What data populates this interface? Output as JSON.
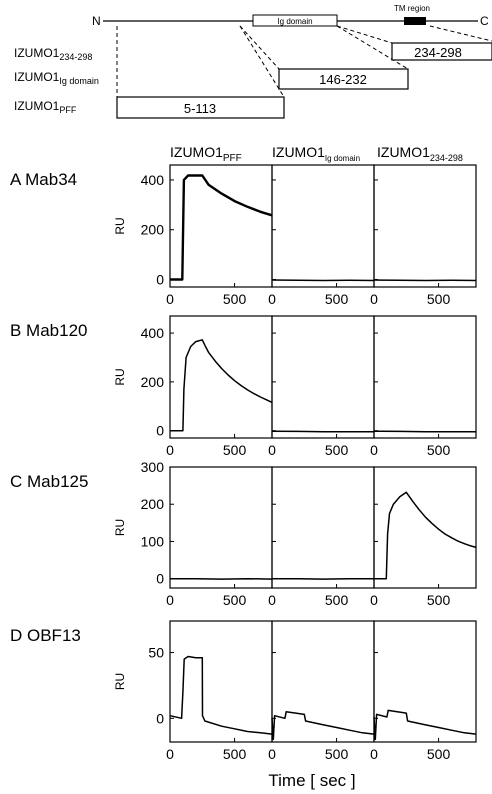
{
  "schematic": {
    "n_label": "N",
    "c_label": "C",
    "ig_domain_label": "Ig domain",
    "tm_region_label": "TM region",
    "constructs": [
      {
        "name_main": "IZUMO1",
        "name_sub": "234-298",
        "range": "234-298"
      },
      {
        "name_main": "IZUMO1",
        "name_sub": "Ig domain",
        "range": "146-232"
      },
      {
        "name_main": "IZUMO1",
        "name_sub": "PFF",
        "range": "5-113"
      }
    ]
  },
  "columns": [
    {
      "main": "IZUMO1",
      "sub": "PFF"
    },
    {
      "main": "IZUMO1",
      "sub": "Ig domain"
    },
    {
      "main": "IZUMO1",
      "sub": "234-298"
    }
  ],
  "x_axis_title": "Time [ sec ]",
  "y_axis_label": "RU",
  "chart_data": [
    {
      "type": "line",
      "panel_letter": "A",
      "antibody": "Mab34",
      "ylabel": "RU",
      "ylim": [
        -30,
        460
      ],
      "yticks": [
        0,
        200,
        400
      ],
      "xlim": [
        0,
        790
      ],
      "xticks": [
        0,
        500
      ],
      "series": [
        {
          "x": [
            0,
            95,
            108,
            140,
            250,
            300,
            400,
            500,
            600,
            700,
            790
          ],
          "y": [
            0,
            0,
            400,
            418,
            418,
            380,
            345,
            315,
            292,
            272,
            258
          ]
        },
        {
          "x": [
            0,
            200,
            400,
            600,
            790
          ],
          "y": [
            -2,
            -3,
            -4,
            -3,
            -4
          ]
        },
        {
          "x": [
            0,
            200,
            400,
            600,
            790
          ],
          "y": [
            -2,
            -3,
            -4,
            -3,
            -4
          ]
        }
      ]
    },
    {
      "type": "line",
      "panel_letter": "B",
      "antibody": "Mab120",
      "ylabel": "RU",
      "ylim": [
        -30,
        470
      ],
      "yticks": [
        0,
        200,
        400
      ],
      "xlim": [
        0,
        790
      ],
      "xticks": [
        0,
        500
      ],
      "series": [
        {
          "x": [
            0,
            100,
            108,
            125,
            160,
            200,
            250,
            270,
            300,
            350,
            400,
            450,
            500,
            550,
            600,
            650,
            700,
            750,
            790
          ],
          "y": [
            0,
            0,
            170,
            300,
            345,
            365,
            372,
            350,
            320,
            285,
            255,
            228,
            205,
            185,
            167,
            152,
            138,
            126,
            116
          ]
        },
        {
          "x": [
            0,
            200,
            400,
            600,
            790
          ],
          "y": [
            -2,
            -3,
            -4,
            -4,
            -4
          ]
        },
        {
          "x": [
            0,
            200,
            400,
            600,
            790
          ],
          "y": [
            -2,
            -3,
            -4,
            -4,
            -4
          ]
        }
      ]
    },
    {
      "type": "line",
      "panel_letter": "C",
      "antibody": "Mab125",
      "ylabel": "RU",
      "ylim": [
        -25,
        300
      ],
      "yticks": [
        0,
        100,
        200,
        300
      ],
      "xlim": [
        0,
        790
      ],
      "xticks": [
        0,
        500
      ],
      "series": [
        {
          "x": [
            0,
            200,
            400,
            600,
            790
          ],
          "y": [
            0,
            0,
            -1,
            0,
            -1
          ]
        },
        {
          "x": [
            0,
            200,
            400,
            600,
            790
          ],
          "y": [
            0,
            0,
            -1,
            0,
            0
          ]
        },
        {
          "x": [
            0,
            95,
            105,
            120,
            150,
            200,
            250,
            300,
            350,
            400,
            450,
            500,
            550,
            600,
            650,
            700,
            750,
            790
          ],
          "y": [
            0,
            0,
            120,
            175,
            200,
            220,
            232,
            208,
            185,
            165,
            148,
            133,
            120,
            110,
            101,
            94,
            88,
            84
          ]
        }
      ]
    },
    {
      "type": "line",
      "panel_letter": "D",
      "antibody": "OBF13",
      "ylabel": "RU",
      "ylim": [
        -18,
        74
      ],
      "yticks": [
        0,
        50
      ],
      "xlim": [
        0,
        790
      ],
      "xticks": [
        0,
        500
      ],
      "series": [
        {
          "x": [
            0,
            90,
            100,
            110,
            140,
            200,
            250,
            252,
            270,
            400,
            500,
            600,
            700,
            790
          ],
          "y": [
            2,
            0,
            20,
            45,
            47,
            46,
            46,
            2,
            -2,
            -6,
            -8,
            -10,
            -11,
            -12
          ]
        },
        {
          "x": [
            0,
            10,
            20,
            100,
            110,
            250,
            260,
            400,
            500,
            600,
            700,
            790
          ],
          "y": [
            0,
            -16,
            2,
            0,
            5,
            3,
            -2,
            -5,
            -7,
            -9,
            -11,
            -12
          ]
        },
        {
          "x": [
            0,
            10,
            20,
            100,
            110,
            250,
            260,
            400,
            500,
            600,
            700,
            790
          ],
          "y": [
            1,
            -16,
            3,
            1,
            6,
            4,
            -2,
            -5,
            -7,
            -9,
            -11,
            -12
          ]
        }
      ]
    }
  ]
}
